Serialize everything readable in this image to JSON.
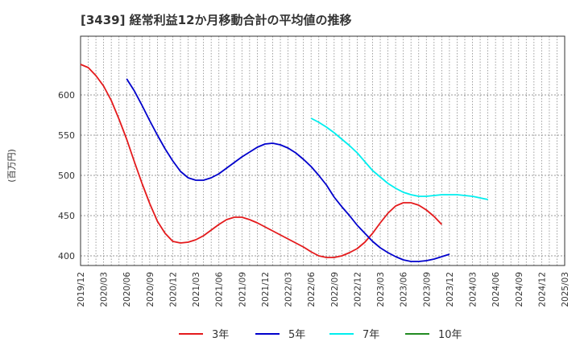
{
  "chart_data": {
    "type": "line",
    "title": "[3439]  経常利益12か月移動合計の平均値の推移",
    "ylabel": "(百万円)",
    "xlabel": "",
    "ylim": [
      388,
      673
    ],
    "yticks": [
      400,
      450,
      500,
      550,
      600
    ],
    "x_tick_labels": [
      "2019/12",
      "2020/03",
      "2020/06",
      "2020/09",
      "2020/12",
      "2021/03",
      "2021/06",
      "2021/09",
      "2021/12",
      "2022/03",
      "2022/06",
      "2022/09",
      "2022/12",
      "2023/03",
      "2023/06",
      "2023/09",
      "2023/12",
      "2024/03",
      "2024/06",
      "2024/09",
      "2024/12",
      "2025/03"
    ],
    "grid": true,
    "legend_position": "bottom",
    "series": [
      {
        "name": "3年",
        "color": "#e41a1c",
        "start_index": 0,
        "values": [
          638,
          634,
          624,
          611,
          593,
          570,
          545,
          517,
          490,
          465,
          443,
          428,
          418,
          416,
          417,
          420,
          425,
          432,
          439,
          445,
          448,
          448,
          445,
          441,
          436,
          431,
          426,
          421,
          416,
          411,
          405,
          400,
          398,
          398,
          400,
          404,
          409,
          417,
          428,
          441,
          453,
          462,
          466,
          466,
          463,
          457,
          449,
          439
        ]
      },
      {
        "name": "5年",
        "color": "#0000cc",
        "start_index": 6,
        "values": [
          620,
          605,
          587,
          568,
          550,
          533,
          518,
          505,
          497,
          494,
          494,
          497,
          502,
          509,
          516,
          523,
          529,
          535,
          539,
          540,
          538,
          534,
          528,
          520,
          511,
          500,
          488,
          473,
          461,
          450,
          438,
          428,
          418,
          410,
          404,
          399,
          395,
          393,
          393,
          394,
          396,
          399,
          402
        ]
      },
      {
        "name": "7年",
        "color": "#00eeee",
        "start_index": 30,
        "values": [
          571,
          566,
          560,
          553,
          545,
          537,
          528,
          517,
          506,
          498,
          490,
          484,
          479,
          476,
          474,
          474,
          475,
          476,
          476,
          476,
          475,
          474,
          472,
          470
        ]
      },
      {
        "name": "10年",
        "color": "#228b22",
        "start_index": 0,
        "values": []
      }
    ]
  }
}
